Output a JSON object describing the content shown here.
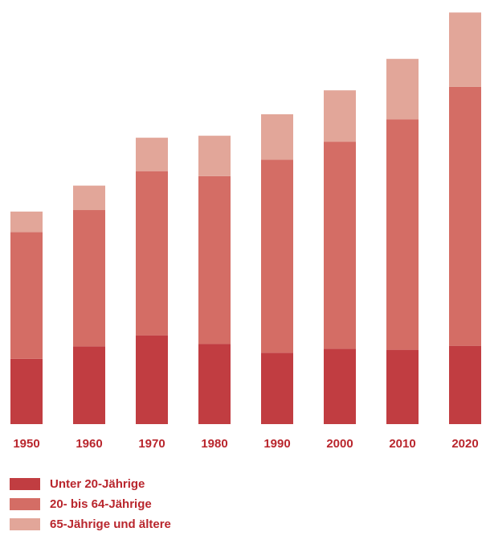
{
  "chart_data": {
    "type": "bar",
    "stacked": true,
    "categories": [
      "1950",
      "1960",
      "1970",
      "1980",
      "1990",
      "2000",
      "2010",
      "2020"
    ],
    "series": [
      {
        "name": "Unter 20-Jährige",
        "color": "#c13d41",
        "values": [
          1.31,
          1.56,
          1.78,
          1.61,
          1.43,
          1.51,
          1.49,
          1.57
        ]
      },
      {
        "name": "20- bis 64-Jährige",
        "color": "#d46d65",
        "values": [
          2.54,
          2.73,
          3.29,
          3.36,
          3.87,
          4.15,
          4.62,
          5.19
        ]
      },
      {
        "name": "65-Jährige und ältere",
        "color": "#e2a699",
        "values": [
          0.41,
          0.49,
          0.67,
          0.81,
          0.91,
          1.03,
          1.21,
          1.49
        ]
      }
    ],
    "ylim": [
      0,
      8.25
    ],
    "grid": false,
    "legend_position": "bottom-left"
  }
}
